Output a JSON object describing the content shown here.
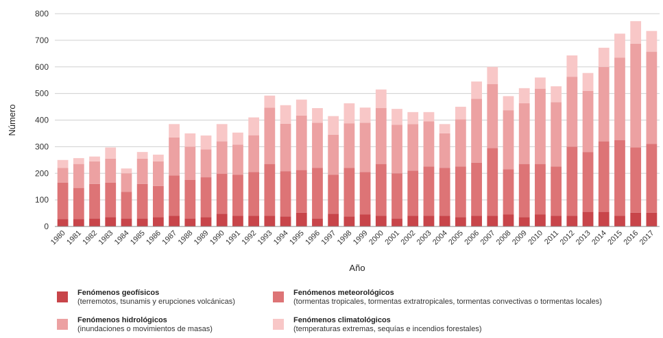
{
  "chart_data": {
    "type": "bar",
    "stacked": true,
    "xlabel": "Año",
    "ylabel": "Número",
    "ylim": [
      0,
      800
    ],
    "yticks": [
      0,
      100,
      200,
      300,
      400,
      500,
      600,
      700,
      800
    ],
    "grid": true,
    "legend_position": "bottom",
    "categories": [
      "1980",
      "1981",
      "1982",
      "1983",
      "1984",
      "1985",
      "1986",
      "1987",
      "1988",
      "1989",
      "1990",
      "1991",
      "1992",
      "1993",
      "1994",
      "1995",
      "1996",
      "1997",
      "1998",
      "1999",
      "2000",
      "2001",
      "2002",
      "2003",
      "2004",
      "2005",
      "2006",
      "2007",
      "2008",
      "2009",
      "2010",
      "2011",
      "2012",
      "2013",
      "2014",
      "2015",
      "2016",
      "2017"
    ],
    "series": [
      {
        "name": "Fenómenos geofísicos",
        "description": "(terremotos, tsunamis y erupciones volcánicas)",
        "color": "#c8454a",
        "values": [
          28,
          28,
          30,
          35,
          30,
          30,
          35,
          40,
          30,
          35,
          48,
          40,
          40,
          40,
          38,
          52,
          30,
          48,
          38,
          45,
          40,
          30,
          40,
          40,
          40,
          35,
          40,
          40,
          45,
          35,
          45,
          40,
          40,
          55,
          55,
          40,
          52,
          52
        ]
      },
      {
        "name": "Fenómenos meteorológicos",
        "description": "(tormentas tropicales, tormentas extratropicales, tormentas convectivas o tormentas locales)",
        "color": "#dd7476",
        "values": [
          137,
          117,
          130,
          130,
          100,
          130,
          117,
          152,
          145,
          150,
          150,
          155,
          165,
          195,
          170,
          160,
          190,
          147,
          182,
          160,
          195,
          170,
          170,
          185,
          180,
          190,
          200,
          255,
          170,
          200,
          190,
          185,
          260,
          225,
          265,
          285,
          245,
          258
        ]
      },
      {
        "name": "Fenómenos hidrológicos",
        "description": "(inundaciones o movimientos de masas)",
        "color": "#eca1a2",
        "values": [
          55,
          90,
          85,
          90,
          70,
          95,
          93,
          143,
          125,
          105,
          122,
          113,
          138,
          212,
          178,
          205,
          170,
          150,
          168,
          185,
          210,
          182,
          175,
          170,
          130,
          178,
          240,
          240,
          222,
          228,
          283,
          242,
          263,
          230,
          280,
          310,
          390,
          347
        ]
      },
      {
        "name": "Fenómenos climatológicos",
        "description": "(temperaturas extremas, sequías e incendios forestales)",
        "color": "#f8c7c7",
        "values": [
          30,
          22,
          18,
          42,
          18,
          25,
          25,
          50,
          50,
          52,
          65,
          45,
          67,
          45,
          70,
          60,
          55,
          70,
          75,
          57,
          70,
          60,
          45,
          35,
          35,
          47,
          65,
          65,
          53,
          57,
          42,
          60,
          80,
          67,
          72,
          90,
          85,
          78
        ]
      }
    ]
  }
}
